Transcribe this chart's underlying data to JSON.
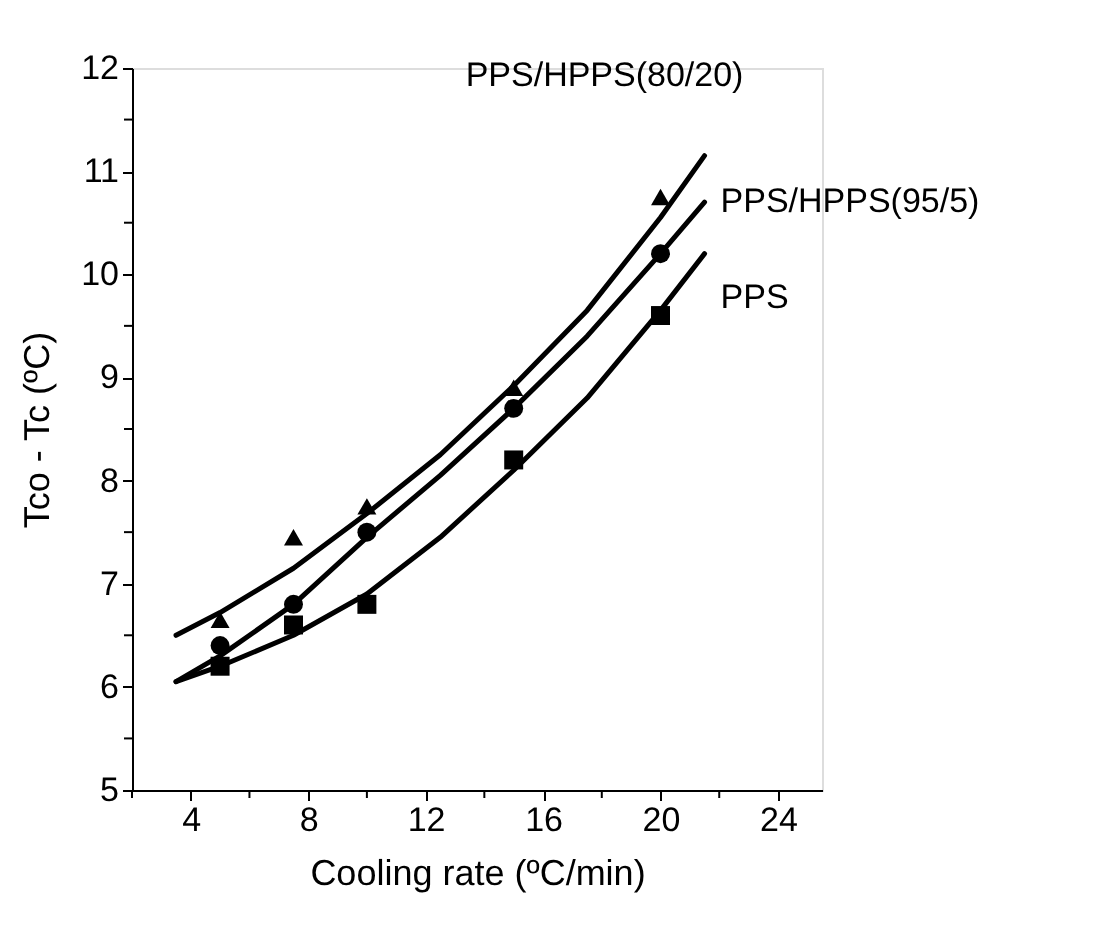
{
  "chart_data": {
    "type": "scatter",
    "xlabel": "Cooling rate (ºC/min)",
    "ylabel": "Tco - Tc (ºC)",
    "xlim": [
      2,
      25.5
    ],
    "ylim": [
      5,
      12
    ],
    "xticks": [
      {
        "value": 2,
        "label": null
      },
      4,
      {
        "value": 6,
        "label": null
      },
      8,
      {
        "value": 10,
        "label": null
      },
      12,
      {
        "value": 14,
        "label": null
      },
      16,
      {
        "value": 18,
        "label": null
      },
      20,
      {
        "value": 22,
        "label": null
      },
      24
    ],
    "yticks": [
      5,
      {
        "value": 5.5,
        "label": null
      },
      6,
      {
        "value": 6.5,
        "label": null
      },
      7,
      {
        "value": 7.5,
        "label": null
      },
      8,
      {
        "value": 8.5,
        "label": null
      },
      9,
      {
        "value": 9.5,
        "label": null
      },
      10,
      {
        "value": 10.5,
        "label": null
      },
      11,
      {
        "value": 11.5,
        "label": null
      },
      12
    ],
    "grid": false,
    "series": [
      {
        "marker": "triangle",
        "color": "#000000",
        "x": [
          5,
          7.5,
          10,
          15,
          20
        ],
        "values": [
          6.65,
          7.45,
          7.75,
          8.9,
          10.75
        ]
      },
      {
        "marker": "circle",
        "color": "#000000",
        "x": [
          5,
          7.5,
          10,
          15,
          20
        ],
        "values": [
          6.4,
          6.8,
          7.5,
          8.7,
          10.2
        ]
      },
      {
        "marker": "square",
        "color": "#000000",
        "x": [
          5,
          7.5,
          10,
          15,
          20
        ],
        "values": [
          6.2,
          6.6,
          6.8,
          8.2,
          9.6
        ]
      },
      {
        "type": "line",
        "name": "PPS/HPPS(80/20)",
        "line_style": "solid",
        "color": "#000000",
        "x": [
          3.5,
          5,
          7.5,
          10,
          12.5,
          15,
          17.5,
          20,
          21.5
        ],
        "values": [
          6.5,
          6.72,
          7.15,
          7.68,
          8.25,
          8.92,
          9.65,
          10.55,
          11.15
        ]
      },
      {
        "type": "line",
        "name": "PPS/HPPS(95/5)",
        "line_style": "solid",
        "color": "#000000",
        "x": [
          3.5,
          5,
          7.5,
          10,
          12.5,
          15,
          17.5,
          20,
          21.5
        ],
        "values": [
          6.05,
          6.3,
          6.8,
          7.45,
          8.05,
          8.7,
          9.4,
          10.2,
          10.7
        ]
      },
      {
        "type": "line",
        "name": "PPS",
        "line_style": "solid",
        "color": "#000000",
        "x": [
          3.5,
          5,
          7.5,
          10,
          12.5,
          15,
          17.5,
          20,
          21.5
        ],
        "values": [
          6.05,
          6.2,
          6.5,
          6.9,
          7.45,
          8.1,
          8.8,
          9.65,
          10.2
        ]
      }
    ]
  }
}
